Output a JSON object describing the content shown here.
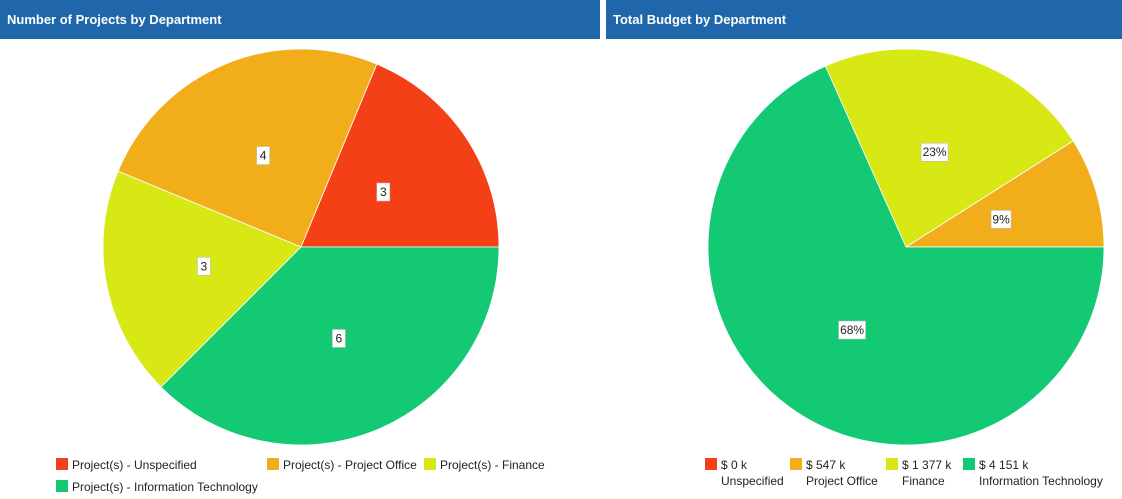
{
  "colors": {
    "header_bg": "#1f67aa",
    "unspecified": "#f44016",
    "project_office": "#f2ae1a",
    "finance": "#d7e815",
    "information_technology": "#14c974"
  },
  "left": {
    "title": "Number of Projects by Department",
    "legend": [
      "Project(s) - Unspecified",
      "Project(s) - Project Office",
      "Project(s) - Finance",
      "Project(s) - Information Technology"
    ]
  },
  "right": {
    "title": "Total Budget by Department",
    "legend": [
      {
        "value": "$ 0 k",
        "dept": "Unspecified"
      },
      {
        "value": "$ 547 k",
        "dept": "Project Office"
      },
      {
        "value": "$ 1 377 k",
        "dept": "Finance"
      },
      {
        "value": "$ 4 151 k",
        "dept": "Information Technology"
      }
    ]
  },
  "chart_data": [
    {
      "type": "pie",
      "title": "Number of Projects by Department",
      "categories": [
        "Project(s) - Unspecified",
        "Project(s) - Project Office",
        "Project(s) - Finance",
        "Project(s) - Information Technology"
      ],
      "values": [
        3,
        4,
        3,
        6
      ],
      "labels": [
        "3",
        "4",
        "3",
        "6"
      ],
      "colors": [
        "#f44016",
        "#f2ae1a",
        "#d7e815",
        "#14c974"
      ],
      "legend": "bottom"
    },
    {
      "type": "pie",
      "title": "Total Budget by Department",
      "categories": [
        "Unspecified",
        "Project Office",
        "Finance",
        "Information Technology"
      ],
      "values": [
        0,
        547,
        1377,
        4151
      ],
      "labels": [
        "",
        "9%",
        "23%",
        "68%"
      ],
      "colors": [
        "#f44016",
        "#f2ae1a",
        "#d7e815",
        "#14c974"
      ],
      "legend": "bottom"
    }
  ]
}
